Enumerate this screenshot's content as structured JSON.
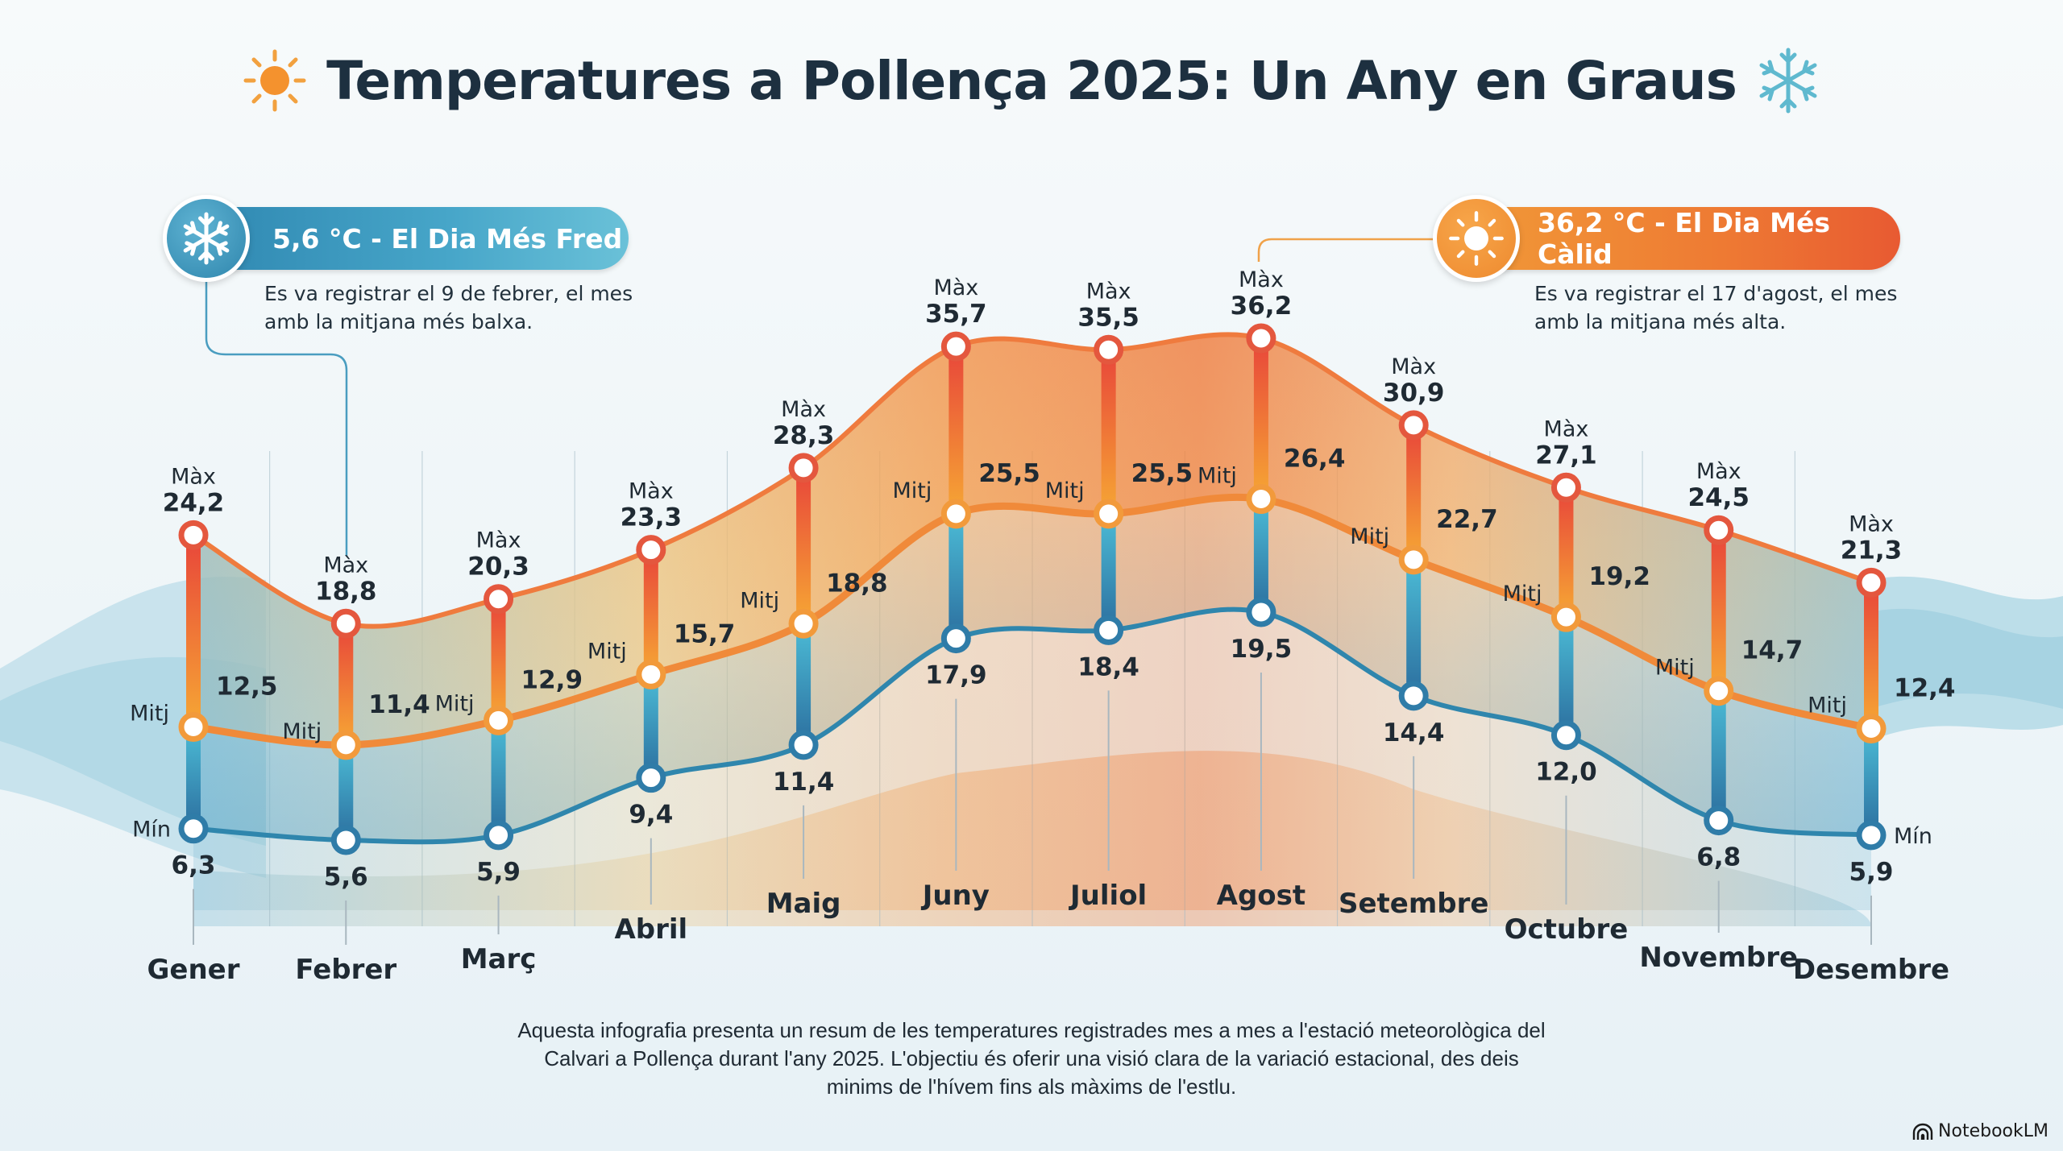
{
  "header": {
    "title": "Temperatures a Pollença 2025: Un Any en Graus",
    "left_icon": "sun-icon",
    "right_icon": "snowflake-icon"
  },
  "callouts": {
    "coldest": {
      "icon": "snowflake-icon",
      "label": "5,6 °C - El Dia Més Fred",
      "description": "Es va registrar el 9 de febrer, el mes amb la mitjana més balxa.",
      "color": "#2e86b0"
    },
    "hottest": {
      "icon": "sun-icon",
      "label": "36,2 °C - El Dia Més Càlid",
      "description": "Es va registrar el 17 d'agost, el mes amb la mitjana més alta.",
      "color": "#ee7a33"
    }
  },
  "labels": {
    "max": "Màx",
    "avg": "Mitj",
    "min": "Mín"
  },
  "chart_data": {
    "type": "line",
    "title": "Temperatures a Pollença 2025: Un Any en Graus",
    "xlabel": "",
    "ylabel": "°C",
    "ylim": [
      0,
      40
    ],
    "grid": false,
    "legend": "inline labels (Màx / Mitj / Mín) on first and last months",
    "categories": [
      "Gener",
      "Febrer",
      "Març",
      "Abril",
      "Maig",
      "Juny",
      "Juliol",
      "Agost",
      "Setembre",
      "Octubre",
      "Novembre",
      "Desembre"
    ],
    "series": [
      {
        "name": "Màx",
        "color": "#e8553a",
        "values": [
          24.2,
          18.8,
          20.3,
          23.3,
          28.3,
          35.7,
          35.5,
          36.2,
          30.9,
          27.1,
          24.5,
          21.3
        ],
        "labels": [
          "24,2",
          "18,8",
          "20,3",
          "23,3",
          "28,3",
          "35,7",
          "35,5",
          "36,2",
          "30,9",
          "27,1",
          "24,5",
          "21,3"
        ]
      },
      {
        "name": "Mitj",
        "color": "#f19a38",
        "values": [
          12.5,
          11.4,
          12.9,
          15.7,
          18.8,
          25.5,
          25.5,
          26.4,
          22.7,
          19.2,
          14.7,
          12.4
        ],
        "labels": [
          "12,5",
          "11,4",
          "12,9",
          "15,7",
          "18,8",
          "25,5",
          "25,5",
          "26,4",
          "22,7",
          "19,2",
          "14,7",
          "12,4"
        ]
      },
      {
        "name": "Mín",
        "color": "#2f7ca8",
        "values": [
          6.3,
          5.6,
          5.9,
          9.4,
          11.4,
          17.9,
          18.4,
          19.5,
          14.4,
          12.0,
          6.8,
          5.9
        ],
        "labels": [
          "6,3",
          "5,6",
          "5,9",
          "9,4",
          "11,4",
          "17,9",
          "18,4",
          "19,5",
          "14,4",
          "12,0",
          "6,8",
          "5,9"
        ]
      }
    ]
  },
  "footer": {
    "description": "Aquesta infografia presenta un resum de les temperatures registrades mes a mes a l'estació meteorològica del Calvari a Pollença durant l'any 2025. L'objectiu és oferir una visió clara de la variació estacional, des deis minims de l'hívem fins als màxims de l'estlu.",
    "brand": "NotebookLM",
    "brand_icon": "notebooklm-logo-icon"
  }
}
